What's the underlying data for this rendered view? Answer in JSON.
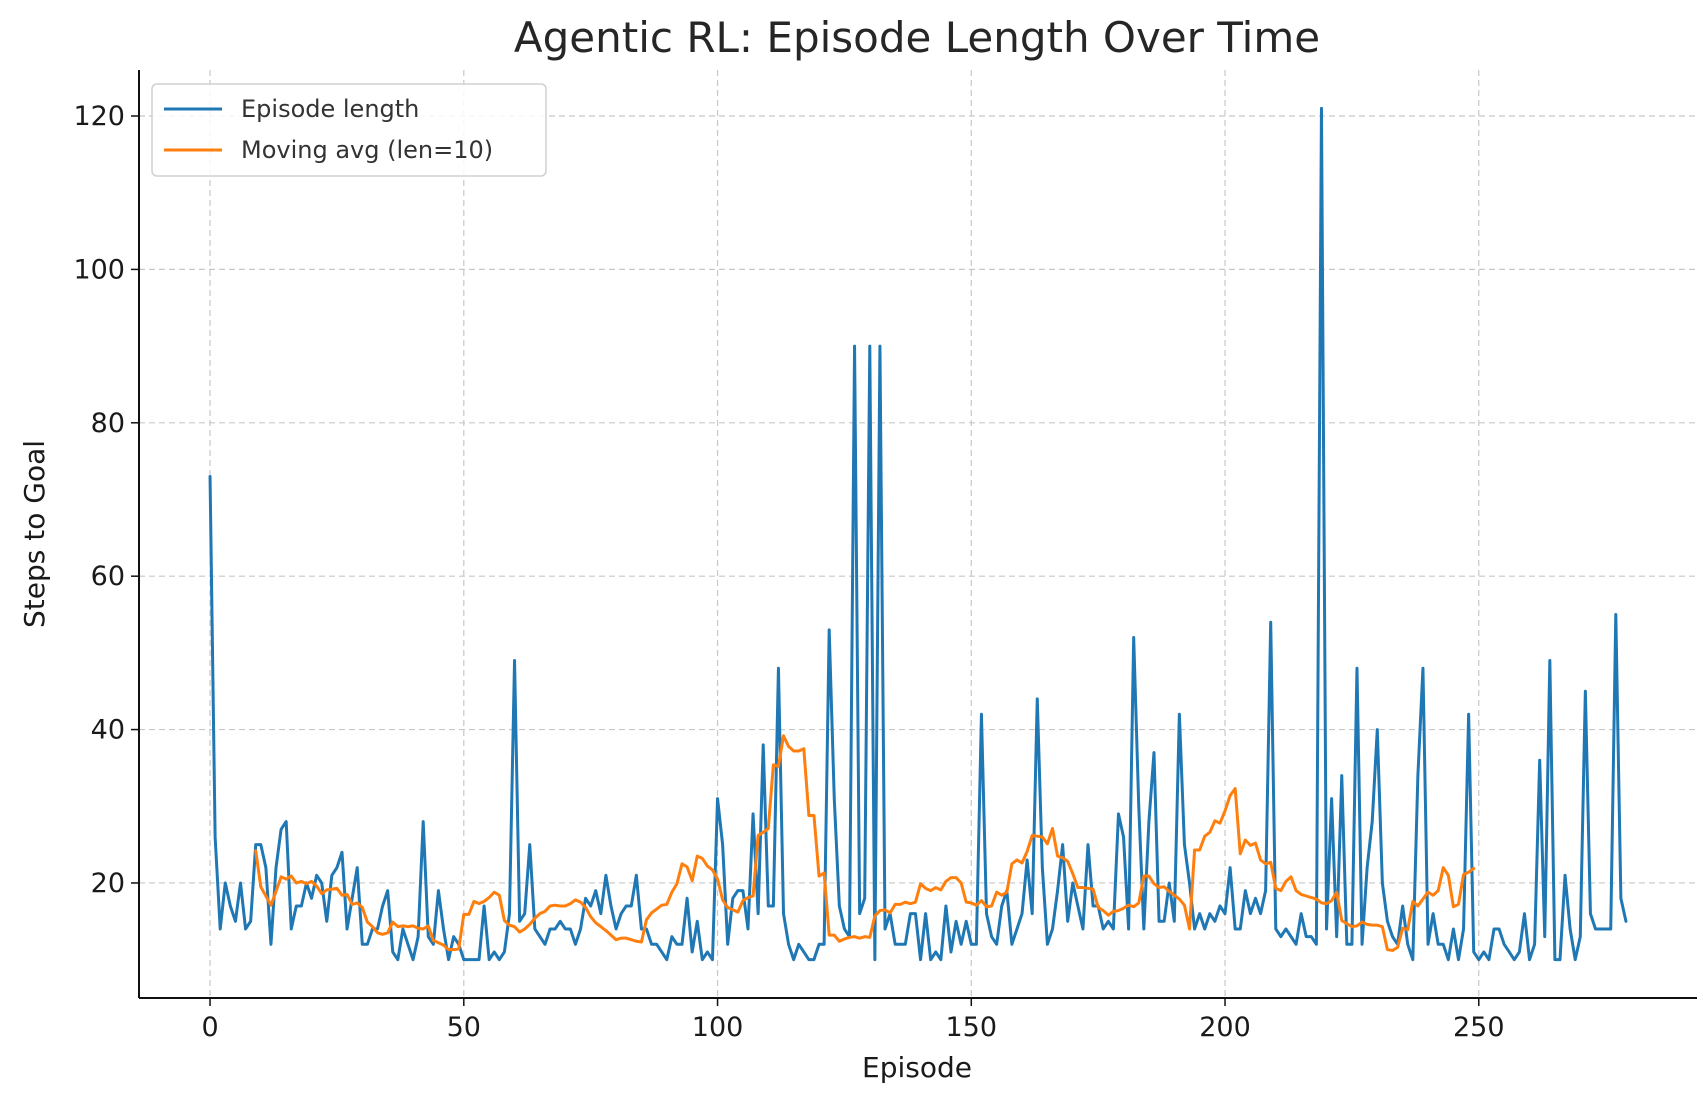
{
  "chart_data": {
    "type": "line",
    "title": "Agentic RL: Episode Length Over Time",
    "xlabel": "Episode",
    "ylabel": "Steps to Goal",
    "xlim": [
      -14,
      293
    ],
    "ylim": [
      5,
      126
    ],
    "xticks": [
      0,
      50,
      100,
      150,
      200,
      250
    ],
    "yticks": [
      20,
      40,
      60,
      80,
      100,
      120
    ],
    "grid": true,
    "legend_position": "top-left",
    "series": [
      {
        "name": "Episode length",
        "color": "#1f77b4",
        "values": [
          73,
          26,
          14,
          20,
          17,
          15,
          20,
          14,
          15,
          25,
          25,
          22,
          12,
          22,
          27,
          28,
          14,
          17,
          17,
          20,
          18,
          21,
          20,
          15,
          21,
          22,
          24,
          14,
          18,
          22,
          12,
          12,
          14,
          14,
          17,
          19,
          11,
          10,
          14,
          12,
          10,
          13,
          28,
          13,
          12,
          19,
          14,
          10,
          13,
          12,
          10,
          10,
          10,
          10,
          17,
          10,
          11,
          10,
          11,
          16,
          49,
          15,
          16,
          25,
          14,
          13,
          12,
          14,
          14,
          15,
          14,
          14,
          12,
          14,
          18,
          17,
          19,
          16,
          21,
          17,
          14,
          16,
          17,
          17,
          21,
          14,
          14,
          12,
          12,
          11,
          10,
          13,
          12,
          12,
          18,
          11,
          15,
          10,
          11,
          10,
          31,
          25,
          12,
          18,
          19,
          19,
          14,
          29,
          16,
          38,
          17,
          17,
          48,
          16,
          12,
          10,
          12,
          11,
          10,
          10,
          12,
          12,
          53,
          31,
          17,
          14,
          13,
          90,
          16,
          18,
          90,
          10,
          90,
          14,
          16,
          12,
          12,
          12,
          16,
          16,
          10,
          16,
          10,
          11,
          10,
          17,
          11,
          15,
          12,
          15,
          12,
          12,
          42,
          16,
          13,
          12,
          17,
          19,
          12,
          14,
          16,
          23,
          16,
          44,
          22,
          12,
          14,
          19,
          25,
          15,
          20,
          17,
          14,
          25,
          17,
          17,
          14,
          15,
          14,
          29,
          26,
          14,
          52,
          30,
          14,
          28,
          37,
          15,
          15,
          20,
          15,
          42,
          25,
          20,
          14,
          16,
          14,
          16,
          15,
          17,
          16,
          22,
          14,
          14,
          19,
          16,
          18,
          16,
          19,
          54,
          14,
          13,
          14,
          13,
          12,
          16,
          13,
          13,
          12,
          121,
          14,
          31,
          13,
          34,
          12,
          12,
          48,
          12,
          22,
          28,
          40,
          20,
          15,
          13,
          12,
          17,
          12,
          10,
          34,
          48,
          12,
          16,
          12,
          12,
          10,
          14,
          10,
          14,
          42,
          11,
          10,
          11,
          10,
          14,
          14,
          12,
          11,
          10,
          11,
          16,
          10,
          12,
          36,
          13,
          49,
          10,
          10,
          21,
          14,
          10,
          13,
          45,
          16,
          14,
          14,
          14,
          14,
          55,
          18,
          15
        ]
      },
      {
        "name": "Moving avg (len=10)",
        "color": "#ff7f0e",
        "start_episode": 9,
        "values": [
          24.2,
          19.5,
          18.3,
          17.1,
          18.9,
          20.8,
          20.5,
          20.9,
          20.0,
          20.2,
          19.9,
          20.2,
          19.6,
          18.6,
          19.1,
          19.2,
          19.3,
          18.4,
          18.5,
          17.2,
          17.4,
          16.8,
          14.9,
          14.3,
          13.5,
          13.3,
          13.5,
          14.9,
          14.3,
          14.4,
          14.3,
          14.4,
          14.1,
          14.0,
          14.4,
          12.5,
          12.2,
          11.9,
          11.3,
          11.3,
          11.4,
          15.9,
          15.9,
          17.6,
          17.3,
          17.6,
          18.1,
          18.8,
          18.4,
          15.1,
          14.5,
          14.3,
          13.6,
          14.0,
          14.6,
          15.4,
          16.0,
          16.3,
          17.0,
          17.1,
          17.0,
          17.0,
          17.3,
          17.8,
          17.5,
          16.8,
          15.6,
          14.8,
          14.3,
          13.8,
          13.2,
          12.6,
          12.8,
          12.8,
          12.6,
          12.4,
          12.3,
          15.2,
          16.1,
          16.6,
          17.1,
          17.2,
          18.8,
          19.9,
          22.5,
          22.1,
          20.3,
          23.5,
          23.2,
          22.2,
          21.7,
          20.5,
          17.8,
          16.8,
          16.5,
          16.2,
          17.7,
          18.1,
          18.3,
          26.2,
          26.6,
          27.1,
          35.4,
          35.2,
          39.2,
          37.8,
          37.2,
          37.2,
          37.5,
          28.8,
          28.8,
          20.9,
          21.3,
          13.2,
          13.2,
          12.4,
          12.7,
          12.9,
          13.0,
          12.8,
          13.0,
          12.9,
          15.7,
          16.4,
          16.5,
          16.1,
          17.2,
          17.2,
          17.5,
          17.3,
          17.5,
          19.9,
          19.3,
          19.0,
          19.4,
          19.1,
          20.2,
          20.7,
          20.7,
          20.0,
          17.5,
          17.4,
          17.1,
          17.7,
          16.9,
          17.0,
          18.8,
          18.4,
          18.8,
          22.5,
          23.0,
          22.6,
          24.1,
          26.2,
          26.1,
          26.0,
          25.1,
          27.1,
          23.5,
          23.3,
          22.8,
          21.2,
          19.4,
          19.4,
          19.3,
          19.2,
          16.8,
          16.4,
          15.8,
          16.3,
          16.4,
          16.7,
          17.1,
          16.9,
          17.4,
          20.9,
          20.9,
          19.9,
          19.4,
          19.5,
          18.9,
          18.4,
          17.9,
          17.1,
          14.0,
          24.3,
          24.3,
          26.1,
          26.6,
          28.1,
          27.8,
          29.4,
          31.4,
          32.3,
          23.8,
          25.6,
          24.9,
          25.2,
          23.0,
          22.5,
          22.7,
          19.3,
          19.0,
          20.2,
          20.8,
          19.0,
          18.5,
          18.3,
          18.1,
          17.9,
          17.4,
          17.3,
          17.7,
          18.8,
          15.1,
          14.7,
          14.3,
          14.4,
          14.9,
          14.6,
          14.5,
          14.5,
          14.3,
          11.3,
          11.2,
          11.6,
          14.1,
          13.9,
          17.6,
          17.0,
          17.9,
          18.8,
          18.4,
          19.0,
          22.0,
          21.0,
          16.9,
          17.2,
          21.1,
          21.4,
          21.9
        ]
      }
    ]
  }
}
